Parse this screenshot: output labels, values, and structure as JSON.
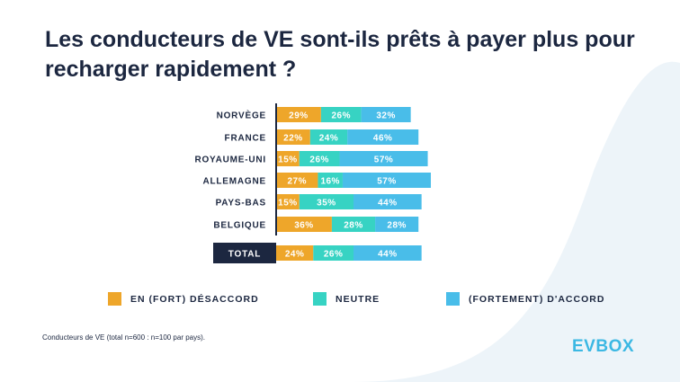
{
  "title": "Les conducteurs de VE sont-ils prêts à payer plus pour recharger rapidement ?",
  "footnote": "Conducteurs de VE (total n=600 : n=100 par pays).",
  "logo_text": "EVBOX",
  "colors": {
    "disagree": "#eea62a",
    "neutral": "#37d3c3",
    "agree": "#49bde9",
    "title": "#1c2740",
    "total_box": "#1c2740",
    "wave": "#edf4f9"
  },
  "chart_data": {
    "type": "bar",
    "orientation": "horizontal",
    "stacked": true,
    "categories": [
      "NORVÈGE",
      "FRANCE",
      "ROYAUME-UNI",
      "ALLEMAGNE",
      "PAYS-BAS",
      "BELGIQUE",
      "TOTAL"
    ],
    "series": [
      {
        "name": "EN (FORT) DÉSACCORD",
        "values": [
          29,
          22,
          15,
          27,
          15,
          36,
          24
        ]
      },
      {
        "name": "NEUTRE",
        "values": [
          26,
          24,
          26,
          16,
          35,
          28,
          26
        ]
      },
      {
        "name": "(FORTEMENT) D'ACCORD",
        "values": [
          32,
          46,
          57,
          57,
          44,
          28,
          44
        ]
      }
    ],
    "value_suffix": "%",
    "legend_position": "bottom",
    "grid": false
  }
}
